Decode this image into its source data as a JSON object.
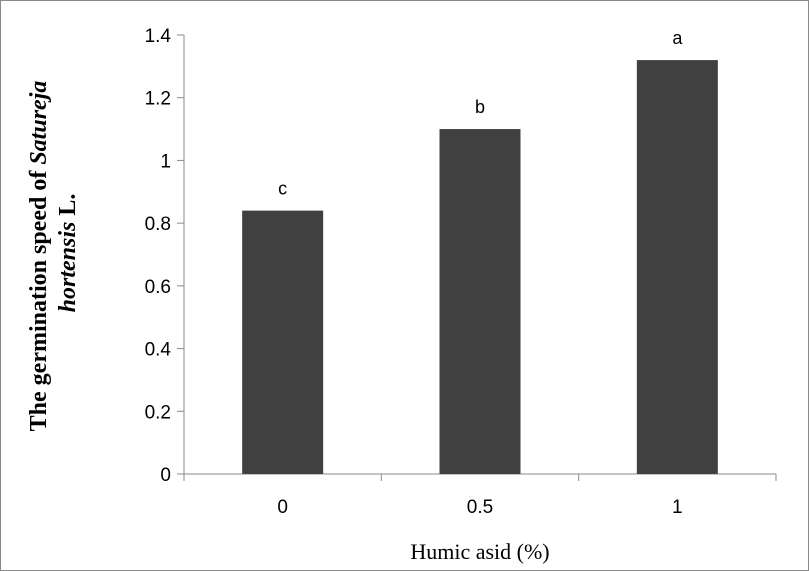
{
  "chart_data": {
    "type": "bar",
    "categories": [
      "0",
      "0.5",
      "1"
    ],
    "values": [
      0.84,
      1.1,
      1.32
    ],
    "data_labels": [
      "c",
      "b",
      "a"
    ],
    "xlabel": "Humic asid (%)",
    "ylabel": {
      "line1": {
        "normal": "The germination speed of ",
        "italic": "Satureja"
      },
      "line2": {
        "italic": "hortensis",
        "normal": " L."
      }
    },
    "ylim": [
      0,
      1.4
    ],
    "yticks": [
      0,
      0.2,
      0.4,
      0.6,
      0.8,
      1,
      1.2,
      1.4
    ],
    "ytick_labels": [
      "0",
      "0.2",
      "0.4",
      "0.6",
      "0.8",
      "1",
      "1.2",
      "1.4"
    ],
    "grid": false,
    "legend": "none",
    "bar_color": "#404040"
  }
}
